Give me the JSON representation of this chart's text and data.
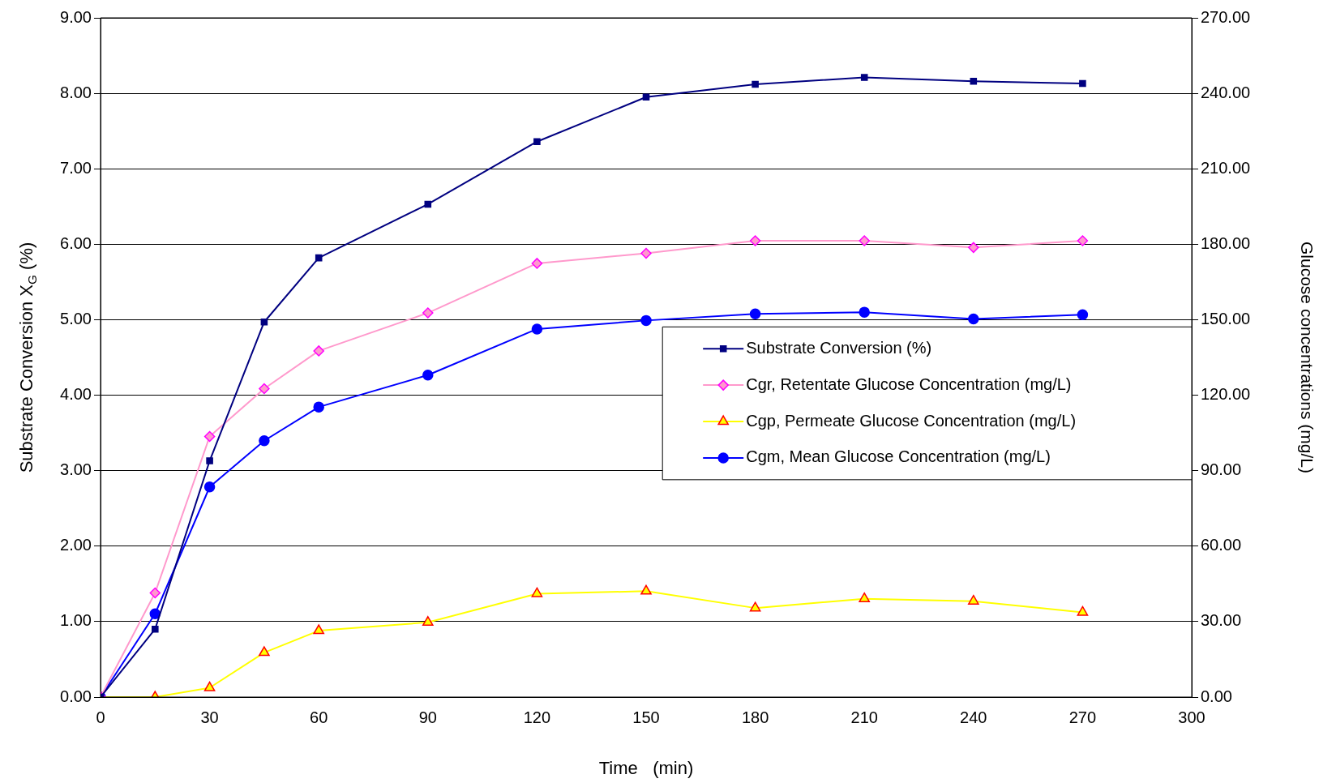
{
  "chart_data": {
    "type": "line",
    "xlabel": "Time   (min)",
    "ylabel": "Substrate Conversion X$_{G}$ (%)",
    "y2label": "Glucose concentrations (mg/L)",
    "x": [
      0,
      15,
      30,
      45,
      60,
      90,
      120,
      150,
      180,
      210,
      240,
      270
    ],
    "xlim": [
      0,
      300
    ],
    "xticks": [
      0,
      30,
      60,
      90,
      120,
      150,
      180,
      210,
      240,
      270,
      300
    ],
    "ylim": [
      0,
      9
    ],
    "yticks": [
      {
        "value": 0,
        "label": "0.00"
      },
      {
        "value": 1,
        "label": "1.00"
      },
      {
        "value": 2,
        "label": "2.00"
      },
      {
        "value": 3,
        "label": "3.00"
      },
      {
        "value": 4,
        "label": "4.00"
      },
      {
        "value": 5,
        "label": "5.00"
      },
      {
        "value": 6,
        "label": "6.00"
      },
      {
        "value": 7,
        "label": "7.00"
      },
      {
        "value": 8,
        "label": "8.00"
      },
      {
        "value": 9,
        "label": "9.00"
      }
    ],
    "y2lim": [
      0,
      270
    ],
    "y2ticks": [
      {
        "value": 0,
        "label": "0.00"
      },
      {
        "value": 30,
        "label": "30.00"
      },
      {
        "value": 60,
        "label": "60.00"
      },
      {
        "value": 90,
        "label": "90.00"
      },
      {
        "value": 120,
        "label": "120.00"
      },
      {
        "value": 150,
        "label": "150.00"
      },
      {
        "value": 180,
        "label": "180.00"
      },
      {
        "value": 210,
        "label": "210.00"
      },
      {
        "value": 240,
        "label": "240.00"
      },
      {
        "value": 270,
        "label": "270.00"
      }
    ],
    "grid": "y",
    "legend": "right",
    "line_style": "solid",
    "series": [
      {
        "name": "Substrate Conversion (%)",
        "color": "#000080",
        "marker": "square",
        "values": [
          0,
          0.9,
          3.13,
          4.97,
          5.82,
          6.53,
          7.36,
          7.95,
          8.12,
          8.21,
          8.16,
          8.13
        ]
      },
      {
        "name": "Cgr, Retentate Glucose Concentration (mg/L)",
        "color": "#ff99cc",
        "marker": "diamond",
        "axis": "y2",
        "values": [
          0,
          41.4,
          103.6,
          122.6,
          137.6,
          152.7,
          172.4,
          176.4,
          181.4,
          181.4,
          178.7,
          181.4
        ]
      },
      {
        "name": "Cgp, Permeate Glucose Concentration (mg/L)",
        "color": "#ffff00",
        "marker": "triangle",
        "axis": "y2",
        "values": [
          0,
          0,
          3.7,
          17.7,
          26.4,
          29.7,
          41.1,
          42.1,
          35.4,
          39.1,
          38.1,
          33.7
        ]
      },
      {
        "name": "Cgm, Mean Glucose Concentration (mg/L)",
        "color": "#0000ff",
        "marker": "circle",
        "axis": "y2",
        "values": [
          0,
          33.1,
          83.5,
          101.9,
          115.3,
          128,
          146.3,
          149.7,
          152.3,
          153,
          150.3,
          152
        ]
      }
    ]
  }
}
